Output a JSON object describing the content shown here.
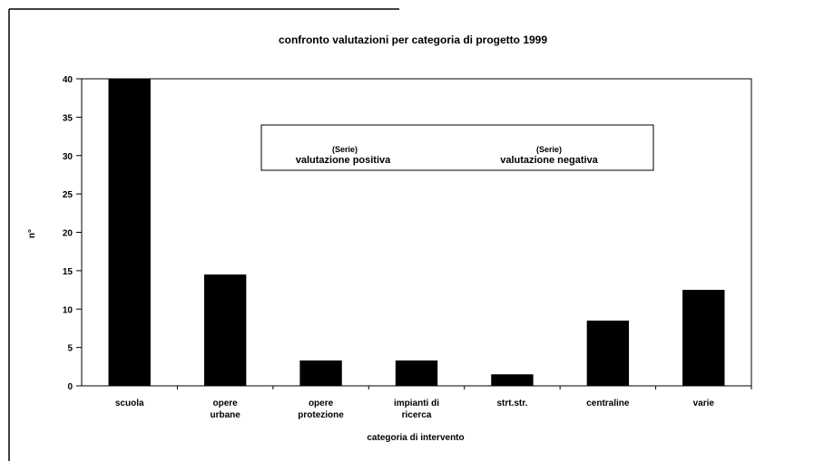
{
  "chart_data": {
    "type": "bar",
    "title": "confronto valutazioni per categoria di progetto 1999",
    "xlabel": "categoria di intervento",
    "ylabel": "n°",
    "ylim": [
      0,
      40
    ],
    "yticks": [
      0,
      5,
      10,
      15,
      20,
      25,
      30,
      35,
      40
    ],
    "ytick_labels": [
      "0",
      "5",
      "10",
      "15",
      "20",
      "25",
      "30",
      "35",
      "40"
    ],
    "categories": [
      [
        "scuola"
      ],
      [
        "opere",
        "urbane"
      ],
      [
        "opere",
        "protezione"
      ],
      [
        "impianti di",
        "ricerca"
      ],
      [
        "strt.str."
      ],
      [
        "centraline"
      ],
      [
        "varie"
      ]
    ],
    "values": [
      40,
      14.5,
      3.3,
      3.3,
      1.5,
      8.5,
      12.5
    ],
    "legend": {
      "placement": "top-center",
      "entries": [
        {
          "marker": "(Serie)",
          "label": "valutazione positiva"
        },
        {
          "marker": "(Serie)",
          "label": "valutazione negativa"
        }
      ]
    },
    "grid": false,
    "bar_color": "#000000"
  }
}
